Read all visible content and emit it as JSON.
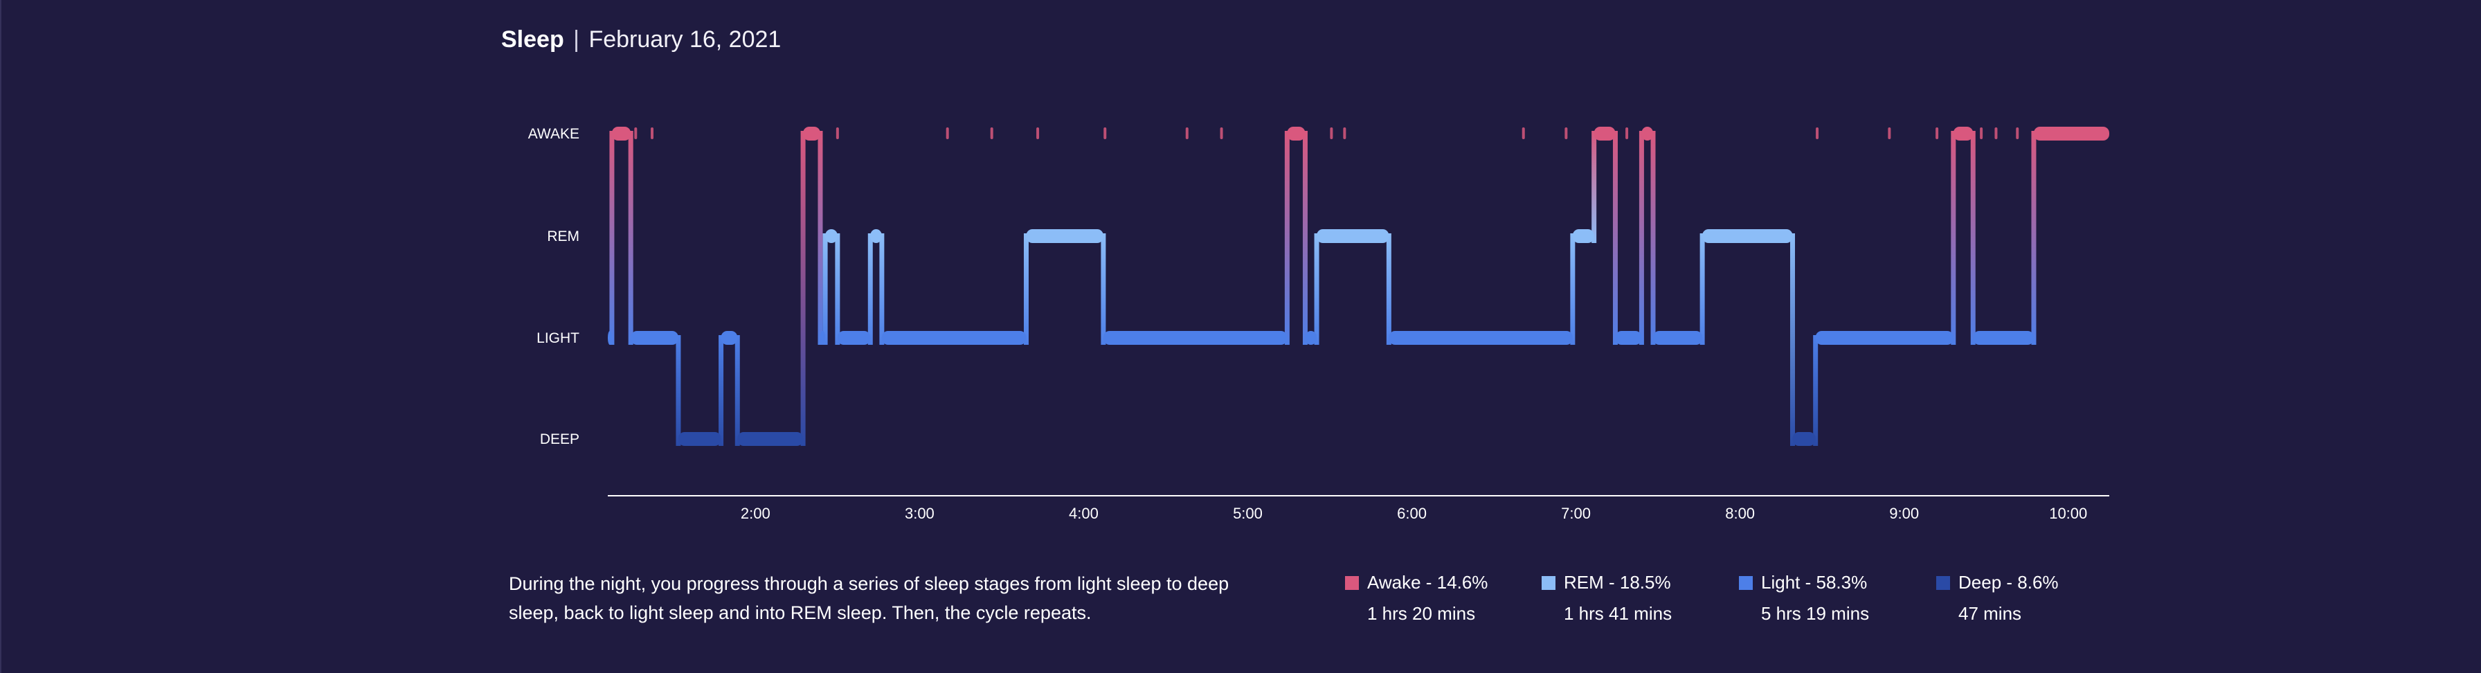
{
  "header": {
    "title": "Sleep",
    "separator": "|",
    "date": "February 16, 2021"
  },
  "description": "During the night, you progress through a series of sleep stages from light sleep to deep sleep, back to light sleep and into REM sleep. Then, the cycle repeats.",
  "legend": [
    {
      "label": "Awake - 14.6%",
      "duration": "1 hrs 20 mins",
      "color": "#d9587e"
    },
    {
      "label": "REM - 18.5%",
      "duration": "1 hrs 41 mins",
      "color": "#8cbdf7"
    },
    {
      "label": "Light - 58.3%",
      "duration": "5 hrs 19 mins",
      "color": "#4d7fe8"
    },
    {
      "label": "Deep - 8.6%",
      "duration": "47 mins",
      "color": "#2a4aa6"
    }
  ],
  "chart_data": {
    "type": "step-hypnogram",
    "stages": [
      "AWAKE",
      "REM",
      "LIGHT",
      "DEEP"
    ],
    "stage_colors": {
      "AWAKE": "#d9587e",
      "REM": "#8cbdf7",
      "LIGHT": "#4d7fe8",
      "DEEP": "#2a4aa6"
    },
    "x_ticks": [
      "2:00",
      "3:00",
      "4:00",
      "5:00",
      "6:00",
      "7:00",
      "8:00",
      "9:00",
      "10:00"
    ],
    "x_unit": "hours after midnight",
    "x_range": [
      1.1,
      10.25
    ],
    "segments": [
      {
        "stage": "LIGHT",
        "start": 1.1,
        "end": 1.125
      },
      {
        "stage": "AWAKE",
        "start": 1.125,
        "end": 1.24
      },
      {
        "stage": "LIGHT",
        "start": 1.24,
        "end": 1.53
      },
      {
        "stage": "DEEP",
        "start": 1.53,
        "end": 1.79
      },
      {
        "stage": "LIGHT",
        "start": 1.79,
        "end": 1.89
      },
      {
        "stage": "DEEP",
        "start": 1.89,
        "end": 2.29
      },
      {
        "stage": "AWAKE",
        "start": 2.29,
        "end": 2.395
      },
      {
        "stage": "LIGHT",
        "start": 2.395,
        "end": 2.425
      },
      {
        "stage": "REM",
        "start": 2.425,
        "end": 2.5
      },
      {
        "stage": "LIGHT",
        "start": 2.5,
        "end": 2.7
      },
      {
        "stage": "REM",
        "start": 2.7,
        "end": 2.77
      },
      {
        "stage": "LIGHT",
        "start": 2.77,
        "end": 3.65
      },
      {
        "stage": "REM",
        "start": 3.65,
        "end": 4.12
      },
      {
        "stage": "LIGHT",
        "start": 4.12,
        "end": 5.24
      },
      {
        "stage": "AWAKE",
        "start": 5.24,
        "end": 5.35
      },
      {
        "stage": "LIGHT",
        "start": 5.35,
        "end": 5.42
      },
      {
        "stage": "REM",
        "start": 5.42,
        "end": 5.86
      },
      {
        "stage": "LIGHT",
        "start": 5.86,
        "end": 6.98
      },
      {
        "stage": "REM",
        "start": 6.98,
        "end": 7.11
      },
      {
        "stage": "AWAKE",
        "start": 7.11,
        "end": 7.24
      },
      {
        "stage": "LIGHT",
        "start": 7.24,
        "end": 7.4
      },
      {
        "stage": "AWAKE",
        "start": 7.4,
        "end": 7.47
      },
      {
        "stage": "LIGHT",
        "start": 7.47,
        "end": 7.77
      },
      {
        "stage": "REM",
        "start": 7.77,
        "end": 8.32
      },
      {
        "stage": "DEEP",
        "start": 8.32,
        "end": 8.46
      },
      {
        "stage": "LIGHT",
        "start": 8.46,
        "end": 9.3
      },
      {
        "stage": "AWAKE",
        "start": 9.3,
        "end": 9.42
      },
      {
        "stage": "LIGHT",
        "start": 9.42,
        "end": 9.79
      },
      {
        "stage": "AWAKE",
        "start": 9.79,
        "end": 10.25
      }
    ],
    "brief_awakenings": [
      1.27,
      1.37,
      2.5,
      3.17,
      3.44,
      3.72,
      4.13,
      4.63,
      4.84,
      5.51,
      5.59,
      6.68,
      6.94,
      7.31,
      8.47,
      8.91,
      9.2,
      9.47,
      9.56,
      9.69
    ],
    "xlabel": "",
    "ylabel": ""
  }
}
